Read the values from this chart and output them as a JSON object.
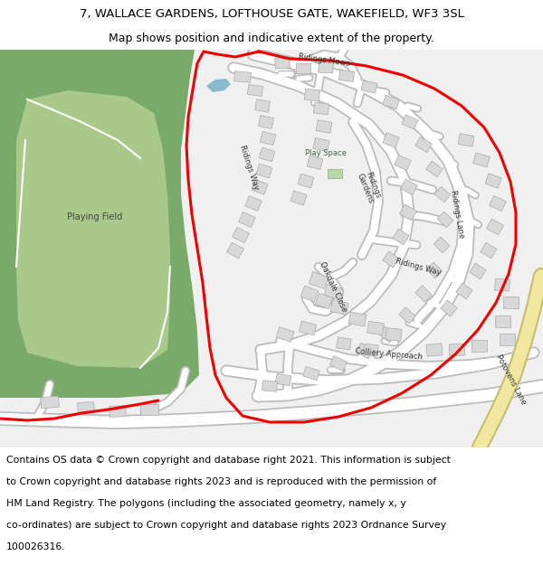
{
  "title_line1": "7, WALLACE GARDENS, LOFTHOUSE GATE, WAKEFIELD, WF3 3SL",
  "title_line2": "Map shows position and indicative extent of the property.",
  "footer_lines": [
    "Contains OS data © Crown copyright and database right 2021. This information is subject",
    "to Crown copyright and database rights 2023 and is reproduced with the permission of",
    "HM Land Registry. The polygons (including the associated geometry, namely x, y",
    "co-ordinates) are subject to Crown copyright and database rights 2023 Ordnance Survey",
    "100026316."
  ],
  "bg_color": "#f0f0f0",
  "green_dark": "#7aaa6a",
  "green_light": "#a8c98a",
  "road_fill": "#ffffff",
  "road_edge": "#c0c0c0",
  "building_fill": "#d8d8d8",
  "building_edge": "#aaaaaa",
  "red_line": "#ee0000",
  "yellow_fill": "#f0e8a0",
  "yellow_edge": "#c8bc70",
  "white_path": "#ffffff",
  "title_fs": 9.5,
  "sub_fs": 9.0,
  "footer_fs": 7.8,
  "label_fs": 6.5
}
